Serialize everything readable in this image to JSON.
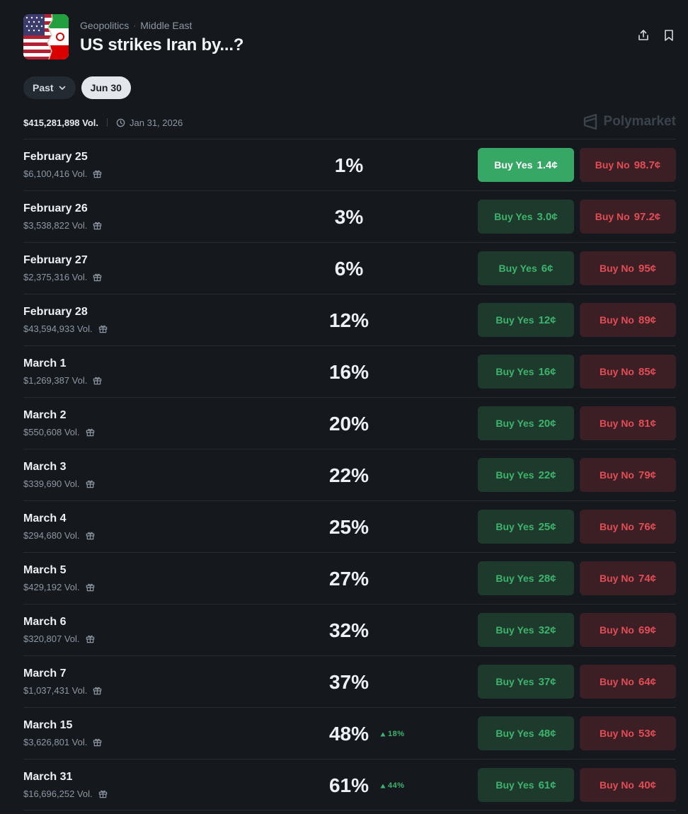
{
  "header": {
    "category": "Geopolitics",
    "subcategory": "Middle East",
    "title": "US strikes Iran by...?"
  },
  "filters": {
    "past_label": "Past",
    "date_label": "Jun 30"
  },
  "meta": {
    "volume": "$415,281,898 Vol.",
    "end_date": "Jan 31, 2026"
  },
  "brand": {
    "name": "Polymarket"
  },
  "colors": {
    "yes": "#3db46d",
    "no": "#e24d55",
    "yes_active": "#36a764",
    "background": "#15191e"
  },
  "outcomes": [
    {
      "title": "February 25",
      "volume": "$6,100,416 Vol.",
      "pct": "1%",
      "delta": "",
      "yes_label": "Buy Yes",
      "yes_price": "1.4¢",
      "no_label": "Buy No",
      "no_price": "98.7¢",
      "yes_active": true
    },
    {
      "title": "February 26",
      "volume": "$3,538,822 Vol.",
      "pct": "3%",
      "delta": "",
      "yes_label": "Buy Yes",
      "yes_price": "3.0¢",
      "no_label": "Buy No",
      "no_price": "97.2¢"
    },
    {
      "title": "February 27",
      "volume": "$2,375,316 Vol.",
      "pct": "6%",
      "delta": "",
      "yes_label": "Buy Yes",
      "yes_price": "6¢",
      "no_label": "Buy No",
      "no_price": "95¢"
    },
    {
      "title": "February 28",
      "volume": "$43,594,933 Vol.",
      "pct": "12%",
      "delta": "",
      "yes_label": "Buy Yes",
      "yes_price": "12¢",
      "no_label": "Buy No",
      "no_price": "89¢"
    },
    {
      "title": "March 1",
      "volume": "$1,269,387 Vol.",
      "pct": "16%",
      "delta": "",
      "yes_label": "Buy Yes",
      "yes_price": "16¢",
      "no_label": "Buy No",
      "no_price": "85¢"
    },
    {
      "title": "March 2",
      "volume": "$550,608 Vol.",
      "pct": "20%",
      "delta": "",
      "yes_label": "Buy Yes",
      "yes_price": "20¢",
      "no_label": "Buy No",
      "no_price": "81¢"
    },
    {
      "title": "March 3",
      "volume": "$339,690 Vol.",
      "pct": "22%",
      "delta": "",
      "yes_label": "Buy Yes",
      "yes_price": "22¢",
      "no_label": "Buy No",
      "no_price": "79¢"
    },
    {
      "title": "March 4",
      "volume": "$294,680 Vol.",
      "pct": "25%",
      "delta": "",
      "yes_label": "Buy Yes",
      "yes_price": "25¢",
      "no_label": "Buy No",
      "no_price": "76¢"
    },
    {
      "title": "March 5",
      "volume": "$429,192 Vol.",
      "pct": "27%",
      "delta": "",
      "yes_label": "Buy Yes",
      "yes_price": "28¢",
      "no_label": "Buy No",
      "no_price": "74¢"
    },
    {
      "title": "March 6",
      "volume": "$320,807 Vol.",
      "pct": "32%",
      "delta": "",
      "yes_label": "Buy Yes",
      "yes_price": "32¢",
      "no_label": "Buy No",
      "no_price": "69¢"
    },
    {
      "title": "March 7",
      "volume": "$1,037,431 Vol.",
      "pct": "37%",
      "delta": "",
      "yes_label": "Buy Yes",
      "yes_price": "37¢",
      "no_label": "Buy No",
      "no_price": "64¢"
    },
    {
      "title": "March 15",
      "volume": "$3,626,801 Vol.",
      "pct": "48%",
      "delta": "18%",
      "yes_label": "Buy Yes",
      "yes_price": "48¢",
      "no_label": "Buy No",
      "no_price": "53¢"
    },
    {
      "title": "March 31",
      "volume": "$16,696,252 Vol.",
      "pct": "61%",
      "delta": "44%",
      "yes_label": "Buy Yes",
      "yes_price": "61¢",
      "no_label": "Buy No",
      "no_price": "40¢"
    }
  ]
}
